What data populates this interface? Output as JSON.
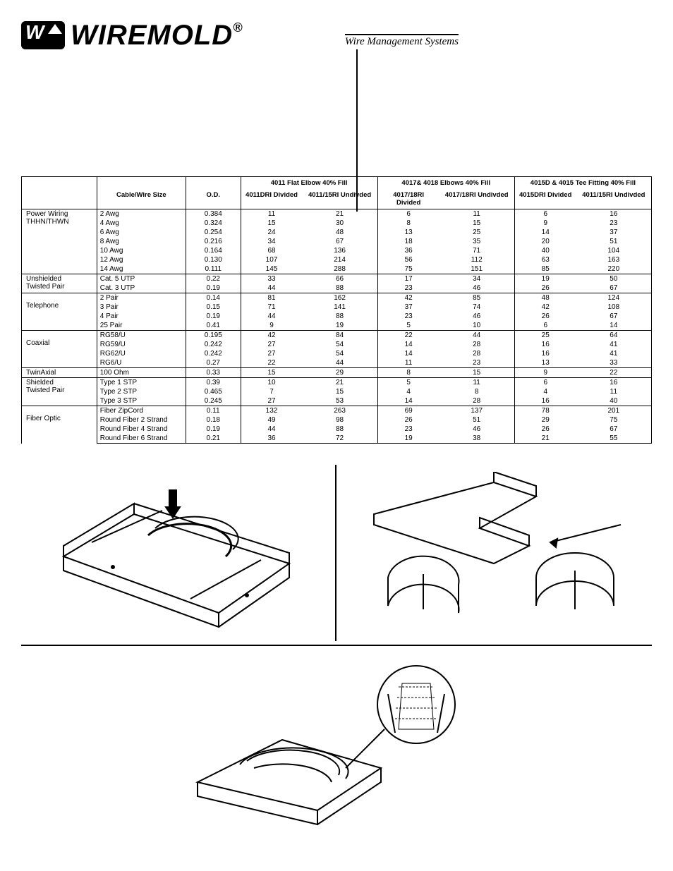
{
  "brand": {
    "name": "WIREMOLD",
    "reg": "®",
    "tagline": "Wire Management Systems"
  },
  "table": {
    "col_headers": {
      "cable_wire": "Cable/Wire Size",
      "od": "O.D.",
      "g1_title": "4011 Flat Elbow 40% Fill",
      "g1_a": "4011DRI Divided",
      "g1_b": "4011/15RI Undivded",
      "g2_title": "4017& 4018 Elbows 40% Fill",
      "g2_a": "4017/18RI Divided",
      "g2_b": "4017/18RI Undivded",
      "g3_title": "4015D & 4015 Tee Fitting  40% Fill",
      "g3_a": "4015DRI Divided",
      "g3_b": "4011/15RI Undivded"
    },
    "sections": [
      {
        "label": "Power Wiring\nTHHN/THWN",
        "rows": [
          {
            "cws": "2 Awg",
            "od": "0.384",
            "a": "11",
            "b": "21",
            "c": "6",
            "d": "11",
            "e": "6",
            "f": "16"
          },
          {
            "cws": "4 Awg",
            "od": "0.324",
            "a": "15",
            "b": "30",
            "c": "8",
            "d": "15",
            "e": "9",
            "f": "23"
          },
          {
            "cws": "6 Awg",
            "od": "0.254",
            "a": "24",
            "b": "48",
            "c": "13",
            "d": "25",
            "e": "14",
            "f": "37"
          },
          {
            "cws": "8 Awg",
            "od": "0.216",
            "a": "34",
            "b": "67",
            "c": "18",
            "d": "35",
            "e": "20",
            "f": "51"
          },
          {
            "cws": "10 Awg",
            "od": "0.164",
            "a": "68",
            "b": "136",
            "c": "36",
            "d": "71",
            "e": "40",
            "f": "104"
          },
          {
            "cws": "12 Awg",
            "od": "0.130",
            "a": "107",
            "b": "214",
            "c": "56",
            "d": "112",
            "e": "63",
            "f": "163"
          },
          {
            "cws": "14 Awg",
            "od": "0.111",
            "a": "145",
            "b": "288",
            "c": "75",
            "d": "151",
            "e": "85",
            "f": "220"
          }
        ]
      },
      {
        "label": "Unshielded\nTwisted Pair",
        "rows": [
          {
            "cws": "Cat. 5 UTP",
            "od": "0.22",
            "a": "33",
            "b": "66",
            "c": "17",
            "d": "34",
            "e": "19",
            "f": "50"
          },
          {
            "cws": "Cat. 3 UTP",
            "od": "0.19",
            "a": "44",
            "b": "88",
            "c": "23",
            "d": "46",
            "e": "26",
            "f": "67"
          }
        ]
      },
      {
        "label": "\nTelephone",
        "rows": [
          {
            "cws": "2 Pair",
            "od": "0.14",
            "a": "81",
            "b": "162",
            "c": "42",
            "d": "85",
            "e": "48",
            "f": "124"
          },
          {
            "cws": "3 Pair",
            "od": "0.15",
            "a": "71",
            "b": "141",
            "c": "37",
            "d": "74",
            "e": "42",
            "f": "108"
          },
          {
            "cws": "4 Pair",
            "od": "0.19",
            "a": "44",
            "b": "88",
            "c": "23",
            "d": "46",
            "e": "26",
            "f": "67"
          },
          {
            "cws": "25 Pair",
            "od": "0.41",
            "a": "9",
            "b": "19",
            "c": "5",
            "d": "10",
            "e": "6",
            "f": "14"
          }
        ]
      },
      {
        "label": "\nCoaxial",
        "rows": [
          {
            "cws": "RG58/U",
            "od": "0.195",
            "a": "42",
            "b": "84",
            "c": "22",
            "d": "44",
            "e": "25",
            "f": "64"
          },
          {
            "cws": "RG59/U",
            "od": "0.242",
            "a": "27",
            "b": "54",
            "c": "14",
            "d": "28",
            "e": "16",
            "f": "41"
          },
          {
            "cws": "RG62/U",
            "od": "0.242",
            "a": "27",
            "b": "54",
            "c": "14",
            "d": "28",
            "e": "16",
            "f": "41"
          },
          {
            "cws": "RG6/U",
            "od": "0.27",
            "a": "22",
            "b": "44",
            "c": "11",
            "d": "23",
            "e": "13",
            "f": "33"
          }
        ]
      },
      {
        "label": "TwinAxial",
        "rows": [
          {
            "cws": "100 Ohm",
            "od": "0.33",
            "a": "15",
            "b": "29",
            "c": "8",
            "d": "15",
            "e": "9",
            "f": "22"
          }
        ]
      },
      {
        "label": "Shielded\nTwisted Pair",
        "rows": [
          {
            "cws": "Type 1 STP",
            "od": "0.39",
            "a": "10",
            "b": "21",
            "c": "5",
            "d": "11",
            "e": "6",
            "f": "16"
          },
          {
            "cws": "Type 2 STP",
            "od": "0.465",
            "a": "7",
            "b": "15",
            "c": "4",
            "d": "8",
            "e": "4",
            "f": "11"
          },
          {
            "cws": "Type 3 STP",
            "od": "0.245",
            "a": "27",
            "b": "53",
            "c": "14",
            "d": "28",
            "e": "16",
            "f": "40"
          }
        ]
      },
      {
        "label": "\nFiber Optic",
        "rows": [
          {
            "cws": "Fiber ZipCord",
            "od": "0.11",
            "a": "132",
            "b": "263",
            "c": "69",
            "d": "137",
            "e": "78",
            "f": "201"
          },
          {
            "cws": "Round Fiber 2 Strand",
            "od": "0.18",
            "a": "49",
            "b": "98",
            "c": "26",
            "d": "51",
            "e": "29",
            "f": "75"
          },
          {
            "cws": "Round Fiber 4 Strand",
            "od": "0.19",
            "a": "44",
            "b": "88",
            "c": "23",
            "d": "46",
            "e": "26",
            "f": "67"
          },
          {
            "cws": "Round Fiber 6 Strand",
            "od": "0.21",
            "a": "36",
            "b": "72",
            "c": "19",
            "d": "38",
            "e": "21",
            "f": "55"
          }
        ]
      }
    ]
  }
}
